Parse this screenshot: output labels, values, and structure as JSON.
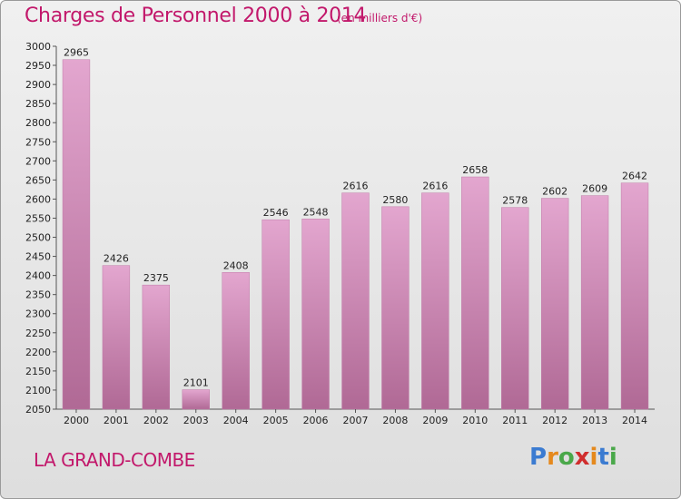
{
  "title": "Charges de Personnel 2000 à 2014",
  "subtitle": "(en milliers d'€)",
  "commune": "LA GRAND-COMBE",
  "brand": [
    "P",
    "r",
    "o",
    "x",
    "i",
    "t",
    "i"
  ],
  "brand_colors": [
    "#3b7bd1",
    "#e5891d",
    "#4aa84a",
    "#d02d2d",
    "#e5891d",
    "#3b7bd1",
    "#4aa84a"
  ],
  "bar_color": "#d98cbf",
  "chart_data": {
    "type": "bar",
    "title": "Charges de Personnel 2000 à 2014",
    "categories": [
      "2000",
      "2001",
      "2002",
      "2003",
      "2004",
      "2005",
      "2006",
      "2007",
      "2008",
      "2009",
      "2010",
      "2011",
      "2012",
      "2013",
      "2014"
    ],
    "values": [
      2965,
      2426,
      2375,
      2101,
      2408,
      2546,
      2548,
      2616,
      2580,
      2616,
      2658,
      2578,
      2602,
      2609,
      2642
    ],
    "ylim": [
      2050,
      3000
    ],
    "yticks": [
      2050,
      2100,
      2150,
      2200,
      2250,
      2300,
      2350,
      2400,
      2450,
      2500,
      2550,
      2600,
      2650,
      2700,
      2750,
      2800,
      2850,
      2900,
      2950,
      3000
    ],
    "grid": false
  }
}
